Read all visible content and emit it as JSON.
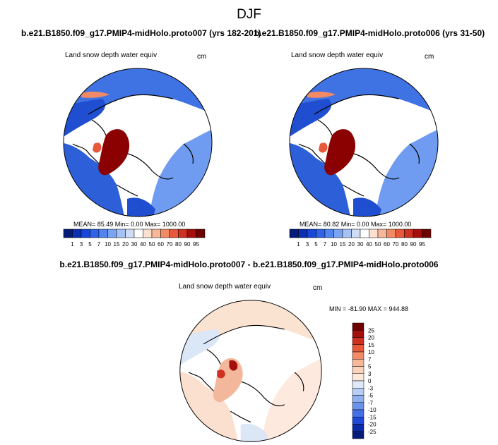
{
  "figure_title": "DJF",
  "panels": [
    {
      "run_title": "b.e21.B1850.f09_g17.PMIP4-midHolo.proto007 (yrs 182-201)",
      "variable": "Land snow depth water equiv",
      "units": "cm",
      "stats": "MEAN=  85.49  Min=   0.00  Max= 1000.00"
    },
    {
      "run_title": "b.e21.B1850.f09_g17.PMIP4-midHolo.proto006 (yrs 31-50)",
      "variable": "Land snow depth water equiv",
      "units": "cm",
      "stats": "MEAN=  80.82  Min=   0.00  Max= 1000.00"
    },
    {
      "run_title": "b.e21.B1850.f09_g17.PMIP4-midHolo.proto007 - b.e21.B1850.f09_g17.PMIP4-midHolo.proto006",
      "variable": "Land snow depth water equiv",
      "units": "cm",
      "stats": "MIN = -81.90 MAX = 944.88"
    }
  ],
  "chart_data": [
    {
      "type": "heatmap",
      "projection": "north-polar-stereographic",
      "title": "b.e21.B1850.f09_g17.PMIP4-midHolo.proto007 (yrs 182-201)",
      "variable": "Land snow depth water equiv",
      "units": "cm",
      "mean": 85.49,
      "min": 0.0,
      "max": 1000.0,
      "colorbar_levels": [
        "1",
        "3",
        "5",
        "7",
        "10",
        "15",
        "20",
        "30",
        "40",
        "50",
        "60",
        "70",
        "80",
        "90",
        "95"
      ],
      "colorbar_colors": [
        "#061a7a",
        "#0b2fb0",
        "#1846d6",
        "#2f64e8",
        "#5285ee",
        "#7aa4f2",
        "#a6c2f5",
        "#cfdcf6",
        "#ffffff",
        "#fde0cf",
        "#f7b89a",
        "#f28a66",
        "#e8593c",
        "#d0301f",
        "#a50f0b",
        "#6e0000"
      ]
    },
    {
      "type": "heatmap",
      "projection": "north-polar-stereographic",
      "title": "b.e21.B1850.f09_g17.PMIP4-midHolo.proto006 (yrs 31-50)",
      "variable": "Land snow depth water equiv",
      "units": "cm",
      "mean": 80.82,
      "min": 0.0,
      "max": 1000.0,
      "colorbar_levels": [
        "1",
        "3",
        "5",
        "7",
        "10",
        "15",
        "20",
        "30",
        "40",
        "50",
        "60",
        "70",
        "80",
        "90",
        "95"
      ],
      "colorbar_colors": [
        "#061a7a",
        "#0b2fb0",
        "#1846d6",
        "#2f64e8",
        "#5285ee",
        "#7aa4f2",
        "#a6c2f5",
        "#cfdcf6",
        "#ffffff",
        "#fde0cf",
        "#f7b89a",
        "#f28a66",
        "#e8593c",
        "#d0301f",
        "#a50f0b",
        "#6e0000"
      ]
    },
    {
      "type": "heatmap",
      "projection": "north-polar-stereographic",
      "title": "b.e21.B1850.f09_g17.PMIP4-midHolo.proto007 - b.e21.B1850.f09_g17.PMIP4-midHolo.proto006",
      "variable": "Land snow depth water equiv",
      "units": "cm",
      "min": -81.9,
      "max": 944.88,
      "colorbar_levels": [
        "25",
        "20",
        "15",
        "10",
        "7",
        "5",
        "3",
        "0",
        "-3",
        "-5",
        "-7",
        "-10",
        "-15",
        "-20",
        "-25"
      ],
      "colorbar_colors": [
        "#6e0000",
        "#a50f0b",
        "#d0301f",
        "#e8593c",
        "#f28a66",
        "#f7b89a",
        "#fbd3bd",
        "#fde8dc",
        "#dde8f8",
        "#b8cdf5",
        "#8fb0f0",
        "#6a93ec",
        "#4670e6",
        "#1f49d6",
        "#0b2aa8",
        "#061a7a"
      ]
    }
  ]
}
